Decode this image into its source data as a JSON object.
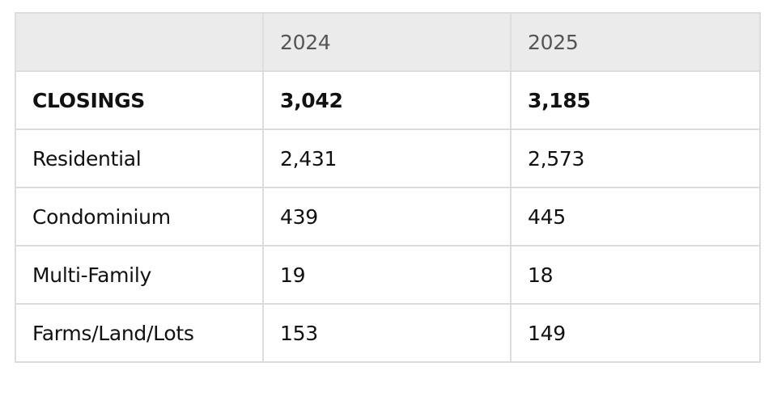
{
  "table": {
    "headers": [
      "",
      "2024",
      "2025"
    ],
    "rows": [
      {
        "label": "CLOSINGS",
        "values": [
          "3,042",
          "3,185"
        ]
      },
      {
        "label": "Residential",
        "values": [
          "2,431",
          "2,573"
        ]
      },
      {
        "label": "Condominium",
        "values": [
          "439",
          "445"
        ]
      },
      {
        "label": "Multi-Family",
        "values": [
          "19",
          "18"
        ]
      },
      {
        "label": "Farms/Land/Lots",
        "values": [
          "153",
          "149"
        ]
      }
    ]
  },
  "colors": {
    "header_background": "#ebebeb",
    "header_text": "#555555",
    "border": "#dddddd",
    "text": "#111111"
  }
}
